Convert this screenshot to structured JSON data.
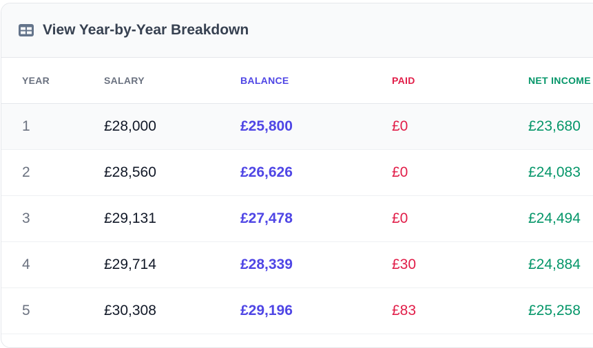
{
  "header": {
    "title": "View Year-by-Year Breakdown",
    "icon": "table-icon"
  },
  "columns": {
    "year": "YEAR",
    "salary": "SALARY",
    "balance": "BALANCE",
    "paid": "PAID",
    "net_income": "NET INCOME"
  },
  "rows": [
    {
      "year": "1",
      "salary": "£28,000",
      "balance": "£25,800",
      "paid": "£0",
      "net_income": "£23,680"
    },
    {
      "year": "2",
      "salary": "£28,560",
      "balance": "£26,626",
      "paid": "£0",
      "net_income": "£24,083"
    },
    {
      "year": "3",
      "salary": "£29,131",
      "balance": "£27,478",
      "paid": "£0",
      "net_income": "£24,494"
    },
    {
      "year": "4",
      "salary": "£29,714",
      "balance": "£28,339",
      "paid": "£30",
      "net_income": "£24,884"
    },
    {
      "year": "5",
      "salary": "£30,308",
      "balance": "£29,196",
      "paid": "£83",
      "net_income": "£25,258"
    }
  ],
  "colors": {
    "balance": "#4f46e5",
    "paid": "#e11d48",
    "net_income": "#059669",
    "muted": "#6b7280"
  }
}
